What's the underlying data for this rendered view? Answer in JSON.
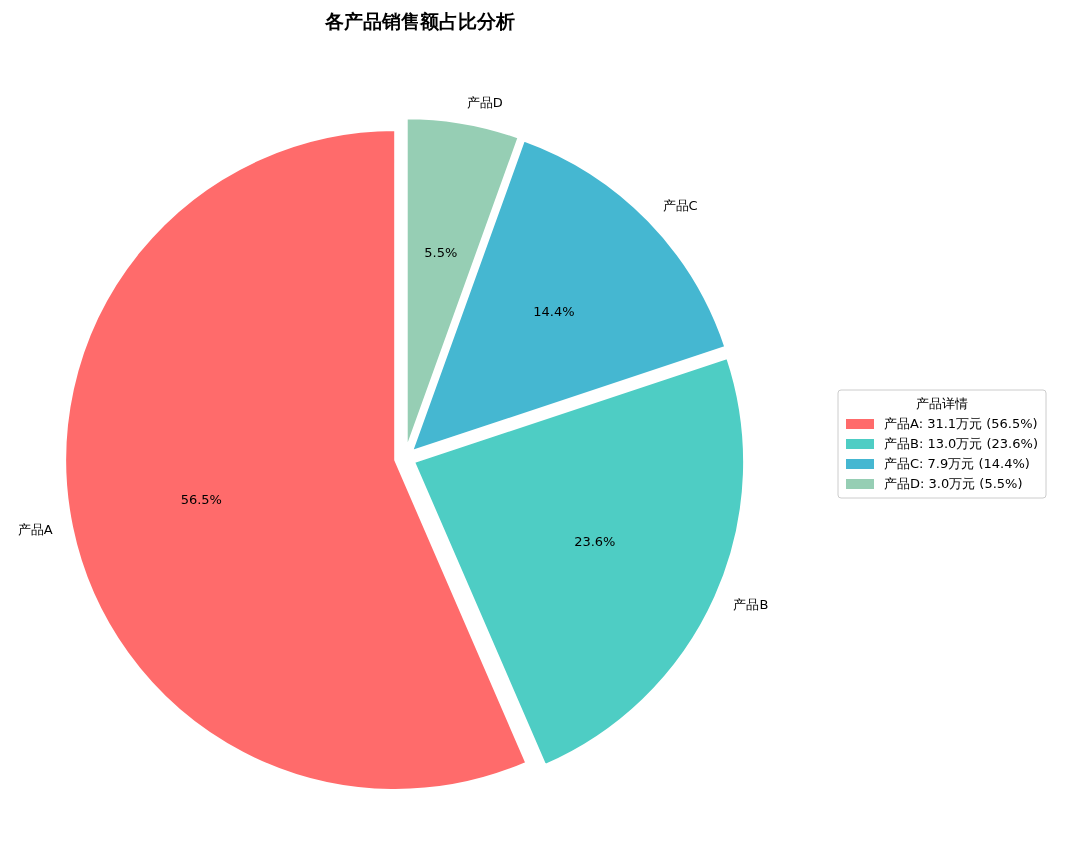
{
  "chart_data": {
    "type": "pie",
    "title": "各产品销售额占比分析",
    "categories": [
      "产品A",
      "产品B",
      "产品C",
      "产品D"
    ],
    "values": [
      56.5,
      23.6,
      14.4,
      5.5
    ],
    "colors": [
      "#ff6b6b",
      "#4ecdc4",
      "#45b7d1",
      "#96ceb4"
    ],
    "value_labels": [
      "56.5%",
      "23.6%",
      "14.4%",
      "5.5%"
    ],
    "legend_title": "产品详情",
    "annotations": [
      "产品A: 31.1万元 (56.5%)",
      "产品B: 13.0万元 (23.6%)",
      "产品C: 7.9万元 (14.4%)",
      "产品D: 3.0万元 (5.5%)"
    ]
  }
}
